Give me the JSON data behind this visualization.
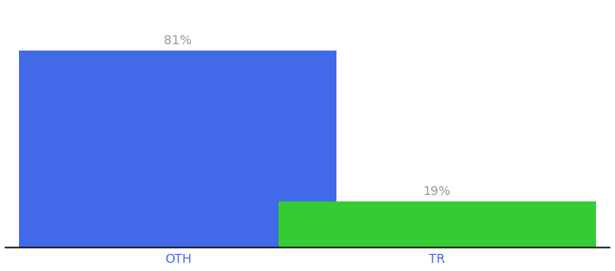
{
  "categories": [
    "OTH",
    "TR"
  ],
  "values": [
    81,
    19
  ],
  "bar_colors": [
    "#4169e8",
    "#33cc33"
  ],
  "label_texts": [
    "81%",
    "19%"
  ],
  "background_color": "#ffffff",
  "ylim": [
    0,
    100
  ],
  "bar_width": 0.55,
  "x_positions": [
    0.3,
    0.75
  ],
  "xlim": [
    0.0,
    1.05
  ],
  "label_fontsize": 10,
  "tick_fontsize": 10,
  "tick_color": "#4169e8",
  "label_color": "#999999"
}
